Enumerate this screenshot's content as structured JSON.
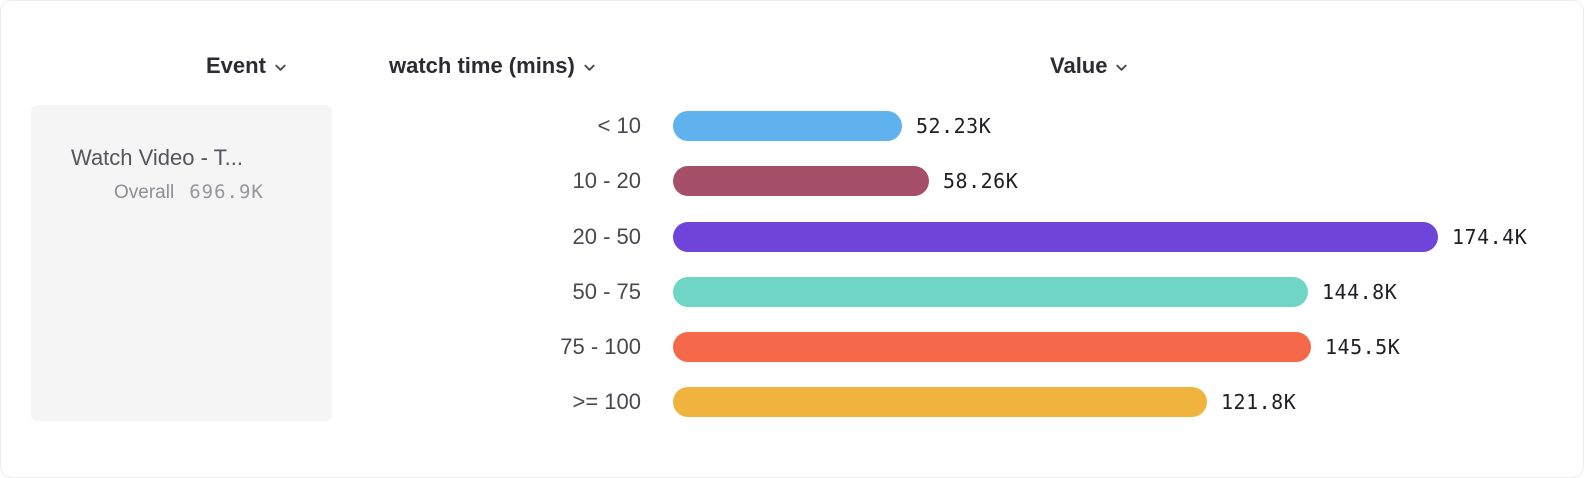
{
  "header": {
    "event_label": "Event",
    "breakdown_label": "watch time (mins)",
    "value_label": "Value"
  },
  "event_card": {
    "name": "Watch Video - T...",
    "overall_label": "Overall",
    "overall_value": "696.9K"
  },
  "chart_data": {
    "type": "bar",
    "orientation": "horizontal",
    "title": "",
    "xlabel": "Value",
    "ylabel": "watch time (mins)",
    "categories": [
      "< 10",
      "10 - 20",
      "20 - 50",
      "50 - 75",
      "75 - 100",
      ">= 100"
    ],
    "values": [
      52230,
      58260,
      174400,
      144800,
      145500,
      121800
    ],
    "value_labels": [
      "52.23K",
      "58.26K",
      "174.4K",
      "144.8K",
      "145.5K",
      "121.8K"
    ],
    "bar_colors": [
      "#5fb2ee",
      "#a55068",
      "#6e44d9",
      "#6fd5c5",
      "#f5694a",
      "#f0b43e"
    ],
    "xlim": [
      0,
      174400
    ],
    "grid": false,
    "legend": "none"
  }
}
